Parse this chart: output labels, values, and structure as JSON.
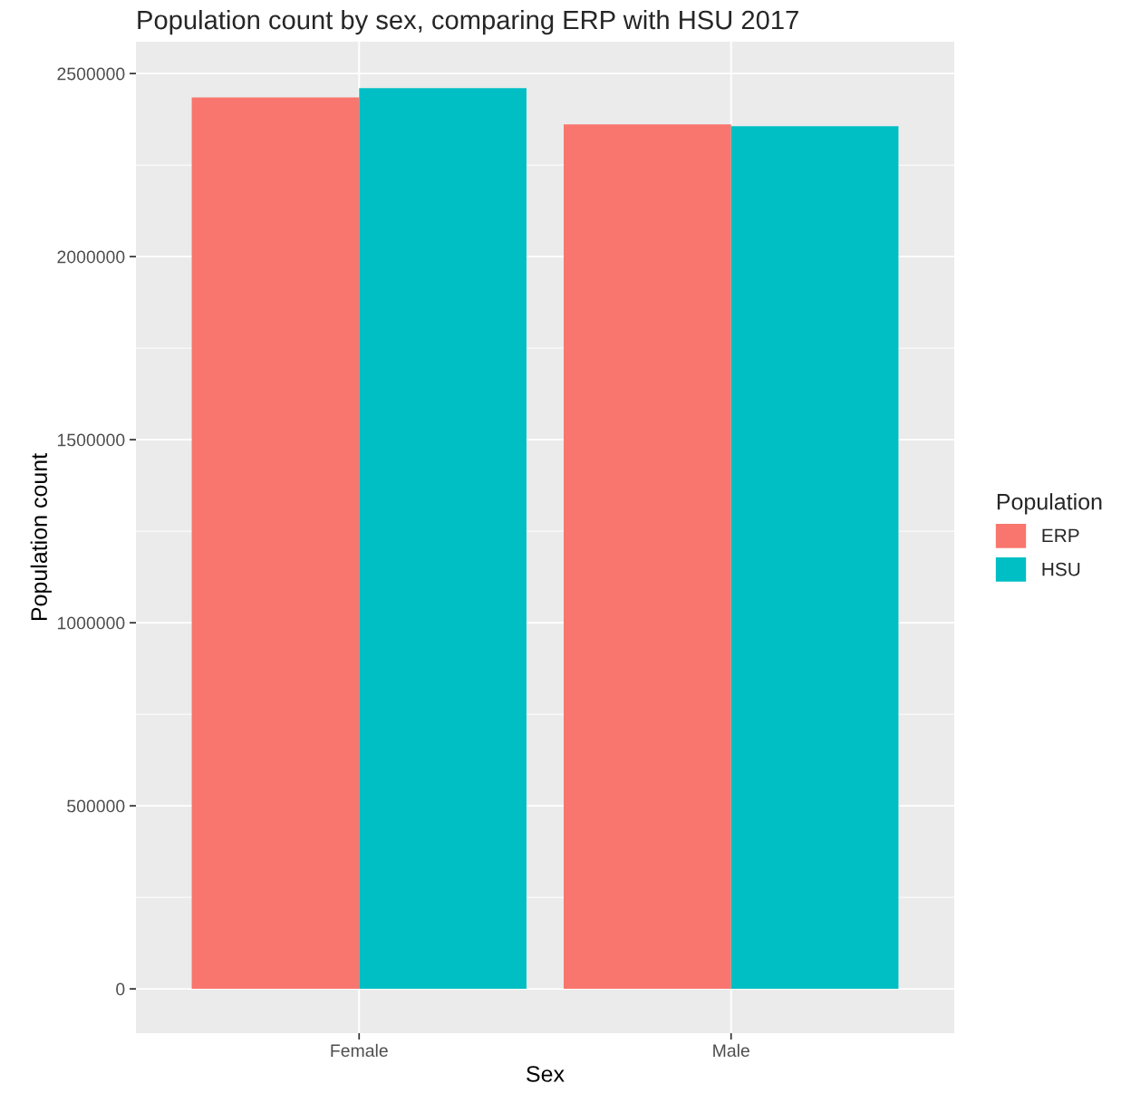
{
  "chart_data": {
    "type": "bar",
    "title": "Population count by sex, comparing ERP with HSU 2017",
    "xlabel": "Sex",
    "ylabel": "Population count",
    "legend_title": "Population",
    "categories": [
      "Female",
      "Male"
    ],
    "series": [
      {
        "name": "ERP",
        "color": "#f8766d",
        "values": [
          2435000,
          2361000
        ]
      },
      {
        "name": "HSU",
        "color": "#00bfc4",
        "values": [
          2460000,
          2356000
        ]
      }
    ],
    "ylim": [
      -121000,
      2587000
    ],
    "yticks": [
      0,
      500000,
      1000000,
      1500000,
      2000000,
      2500000
    ],
    "grid": true,
    "legend": "right"
  }
}
